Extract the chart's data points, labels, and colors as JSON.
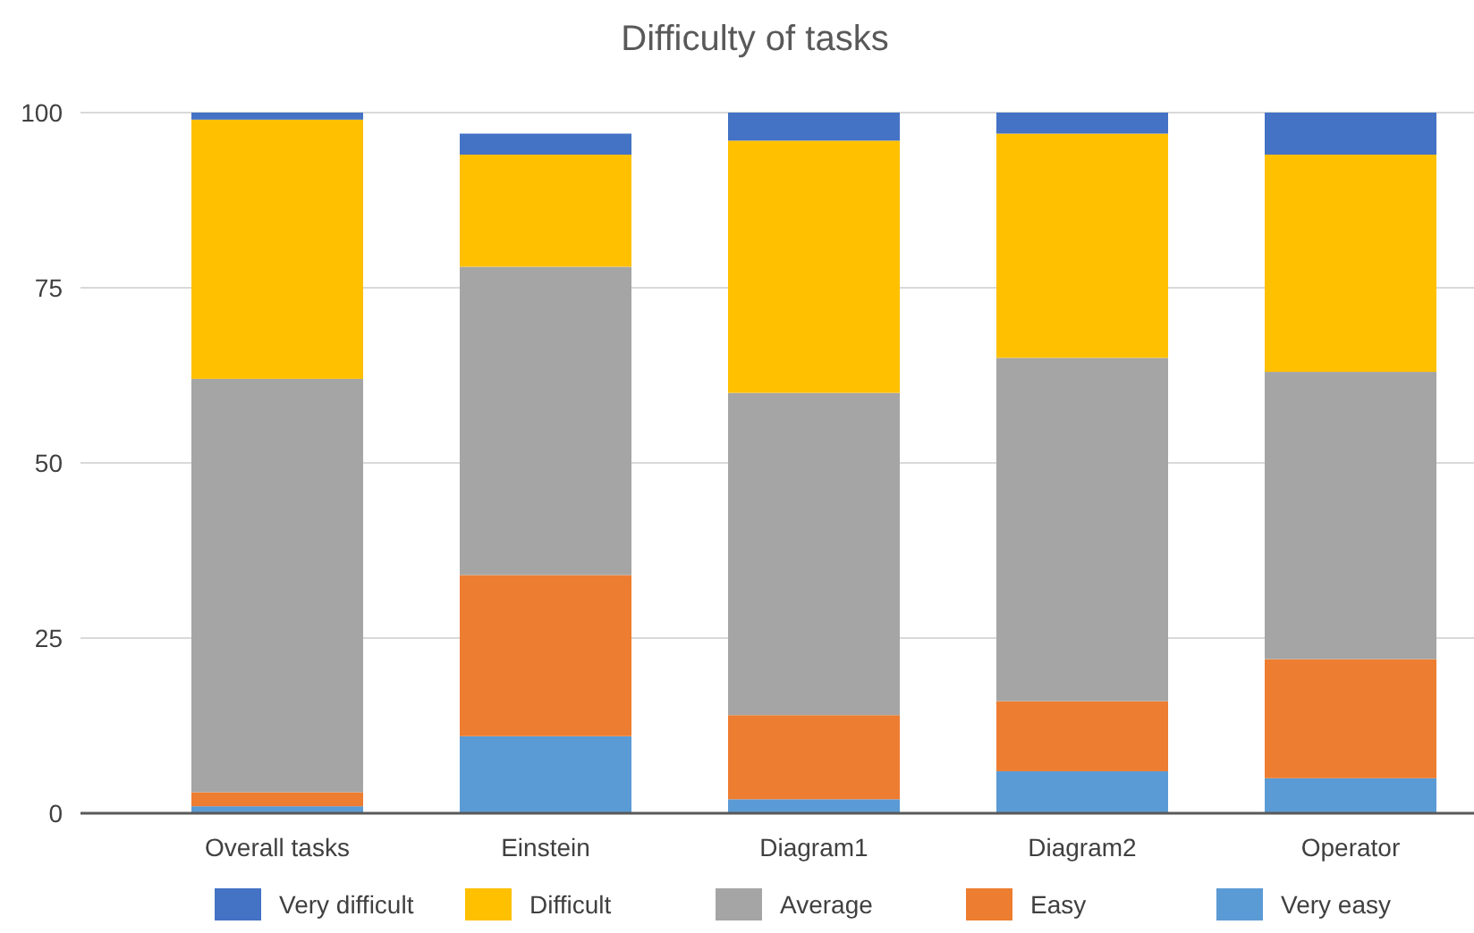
{
  "chart_data": {
    "type": "bar",
    "title": "Difficulty of tasks",
    "stacked": true,
    "categories": [
      "Overall tasks",
      "Einstein",
      "Diagram1",
      "Diagram2",
      "Operator"
    ],
    "series": [
      {
        "name": "Very easy",
        "color": "#5b9bd5",
        "values": [
          1,
          11,
          2,
          6,
          5
        ]
      },
      {
        "name": "Easy",
        "color": "#ed7d31",
        "values": [
          2,
          23,
          12,
          10,
          17
        ]
      },
      {
        "name": "Average",
        "color": "#a5a5a5",
        "values": [
          59,
          44,
          46,
          49,
          41
        ]
      },
      {
        "name": "Difficult",
        "color": "#ffc000",
        "values": [
          37,
          16,
          36,
          32,
          31
        ]
      },
      {
        "name": "Very difficult",
        "color": "#4472c4",
        "values": [
          1,
          3,
          4,
          3,
          6
        ]
      }
    ],
    "ylim": [
      0,
      100
    ],
    "yticks": [
      0,
      25,
      50,
      75,
      100
    ],
    "grid": "y",
    "legend": "bottom"
  }
}
